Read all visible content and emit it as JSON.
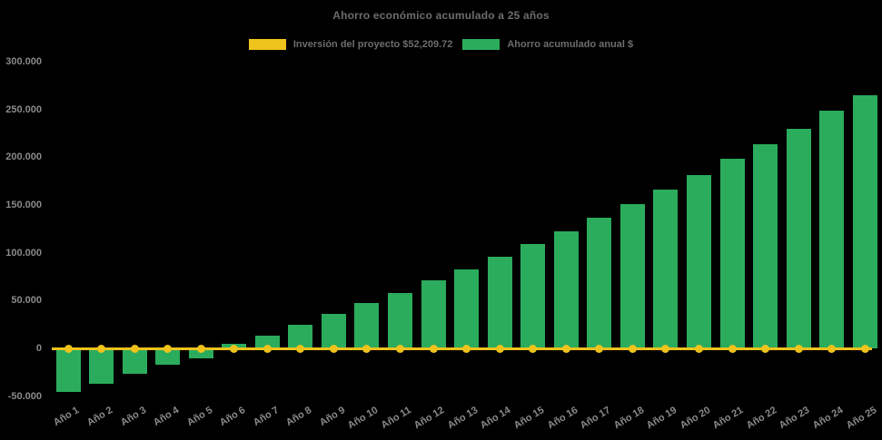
{
  "title": "Ahorro económico acumulado a 25 años",
  "colors": {
    "background": "#000000",
    "bar_green": "#2bac5d",
    "line_yellow": "#eec31c",
    "title_text": "#6c6c6c",
    "axis_text": "#8a8a8a"
  },
  "legend": {
    "items": [
      {
        "label": "Inversión del proyecto $52,209.72",
        "color": "#eec31c"
      },
      {
        "label": "Ahorro acumulado anual $",
        "color": "#2bac5d"
      }
    ]
  },
  "chart_data": {
    "type": "bar",
    "title": "Ahorro económico acumulado a 25 años",
    "categories": [
      "Año 1",
      "Año 2",
      "Año 3",
      "Año 4",
      "Año 5",
      "Año 6",
      "Año 7",
      "Año 8",
      "Año 9",
      "Año 10",
      "Año 11",
      "Año 12",
      "Año 13",
      "Año 14",
      "Año 15",
      "Año 16",
      "Año 17",
      "Año 18",
      "Año 19",
      "Año 20",
      "Año 21",
      "Año 22",
      "Año 23",
      "Año 24",
      "Año 25"
    ],
    "series": [
      {
        "name": "Inversión del proyecto $52,209.72",
        "type": "line",
        "marker": "circle",
        "color": "#eec31c",
        "values": [
          0,
          0,
          0,
          0,
          0,
          0,
          0,
          0,
          0,
          0,
          0,
          0,
          0,
          0,
          0,
          0,
          0,
          0,
          0,
          0,
          0,
          0,
          0,
          0,
          0
        ]
      },
      {
        "name": "Ahorro acumulado anual $",
        "type": "bar",
        "color": "#2bac5d",
        "values": [
          -45500,
          -36500,
          -26500,
          -17000,
          -9500,
          5000,
          14000,
          25000,
          36500,
          48000,
          58500,
          71500,
          83000,
          96500,
          110000,
          123000,
          137000,
          151000,
          166500,
          181500,
          199000,
          214000,
          230000,
          249000,
          265000
        ]
      }
    ],
    "y_axis": {
      "min": -50000,
      "max": 300000,
      "tick_step": 50000,
      "ticks": [
        {
          "label": "300.000",
          "value": 300000
        },
        {
          "label": "250.000",
          "value": 250000
        },
        {
          "label": "200.000",
          "value": 200000
        },
        {
          "label": "150.000",
          "value": 150000
        },
        {
          "label": "100.000",
          "value": 100000
        },
        {
          "label": "50.000",
          "value": 50000
        },
        {
          "label": "0",
          "value": 0
        },
        {
          "label": "-50.000",
          "value": -50000
        }
      ]
    },
    "grid": false,
    "legend_position": "top",
    "background": "#000000"
  }
}
